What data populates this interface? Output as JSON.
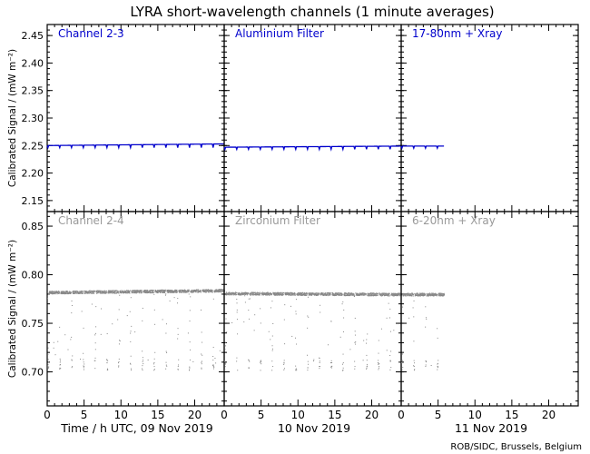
{
  "title": "LYRA short-wavelength channels (1 minute averages)",
  "credit": "ROB/SIDC, Brussels, Belgium",
  "x_axis_caption": "Time / h UTC, 09 Nov 2019",
  "colors": {
    "top_series": "#0000cc",
    "top_labels": "#0000cc",
    "bottom_series": "#888888",
    "bottom_labels": "#999999",
    "axes": "#000000"
  },
  "chart_data": [
    {
      "type": "line",
      "row": "top",
      "ylabel": "Calibrated Signal / (mW m⁻²)",
      "ylim": [
        2.13,
        2.47
      ],
      "yticks": [
        2.15,
        2.2,
        2.25,
        2.3,
        2.35,
        2.4,
        2.45
      ],
      "ytick_labels": [
        "2.15",
        "2.20",
        "2.25",
        "2.30",
        "2.35",
        "2.40",
        "2.45"
      ],
      "xlim": [
        0,
        24
      ],
      "xticks": [
        0,
        5,
        10,
        15,
        20
      ],
      "panels": [
        {
          "label": "Channel 2-3",
          "date": "09 Nov 2019",
          "x_end": 24,
          "baseline_start": 2.25,
          "baseline_end": 2.253,
          "dip": 2.246,
          "dip_period_h": 1.6
        },
        {
          "label": "Aluminium Filter",
          "date": "10 Nov 2019",
          "x_end": 24,
          "baseline_start": 2.247,
          "baseline_end": 2.249,
          "dip": 2.243,
          "dip_period_h": 1.6
        },
        {
          "label": "17-80nm + Xray",
          "date": "11 Nov 2019",
          "x_end": 5.8,
          "baseline_start": 2.249,
          "baseline_end": 2.249,
          "dip": 2.245,
          "dip_period_h": 1.6
        }
      ]
    },
    {
      "type": "scatter",
      "row": "bottom",
      "ylabel": "Calibrated Signal / (mW m⁻²)",
      "ylim": [
        0.665,
        0.865
      ],
      "yticks": [
        0.7,
        0.75,
        0.8,
        0.85
      ],
      "ytick_labels": [
        "0.70",
        "0.75",
        "0.80",
        "0.85"
      ],
      "xlim": [
        0,
        24
      ],
      "xticks": [
        0,
        5,
        10,
        15,
        20
      ],
      "xtick_labels": [
        "0",
        "5",
        "10",
        "15",
        "20"
      ],
      "panels": [
        {
          "label": "Channel 2-4",
          "date": "09 Nov 2019",
          "x_end": 24,
          "baseline_start": 0.782,
          "baseline_end": 0.784,
          "low_cluster": 0.708,
          "dip_period_h": 1.6
        },
        {
          "label": "Zirconium Filter",
          "date": "10 Nov 2019",
          "x_end": 24,
          "baseline_start": 0.781,
          "baseline_end": 0.78,
          "low_cluster": 0.707,
          "dip_period_h": 1.6
        },
        {
          "label": "6-20nm + Xray",
          "date": "11 Nov 2019",
          "x_end": 5.8,
          "baseline_start": 0.78,
          "baseline_end": 0.78,
          "low_cluster": 0.707,
          "dip_period_h": 1.6
        }
      ]
    }
  ]
}
